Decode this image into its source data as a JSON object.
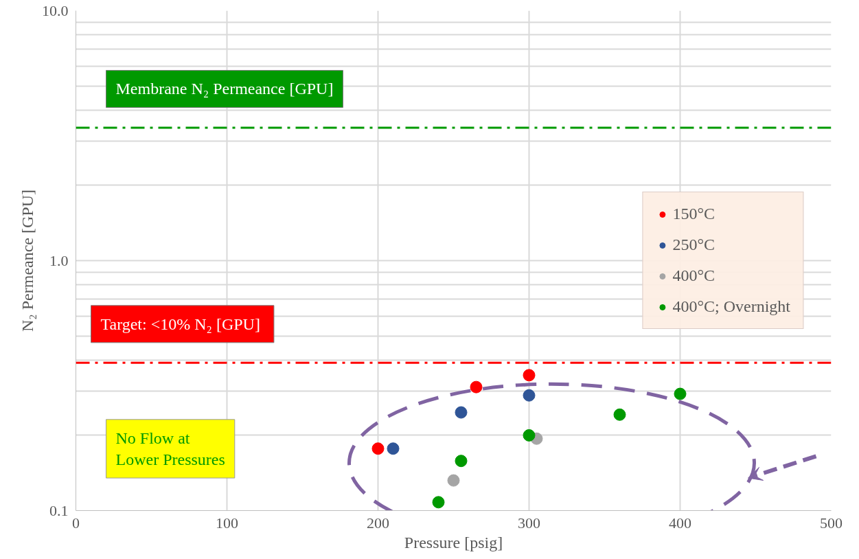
{
  "chart_data": {
    "type": "scatter",
    "xlabel": "Pressure [psig]",
    "ylabel": "N₂ Permeance [GPU]",
    "xlim": [
      0,
      500
    ],
    "xticks": [
      0,
      100,
      200,
      300,
      400,
      500
    ],
    "ylim": [
      0.1,
      10
    ],
    "yticks": [
      0.1,
      {
        "value": 1,
        "label": "1.0"
      },
      {
        "value": 10,
        "label": "10.0"
      }
    ],
    "log": "y",
    "grid": true,
    "legend": "right",
    "marker": "circle",
    "series": [
      {
        "name": "150°C",
        "color": "#ff0000",
        "x": [
          200,
          265,
          300
        ],
        "values": [
          0.177,
          0.312,
          0.348
        ]
      },
      {
        "name": "250°C",
        "color": "#2f5597",
        "x": [
          210,
          255,
          300
        ],
        "values": [
          0.177,
          0.247,
          0.289
        ]
      },
      {
        "name": "400°C",
        "color": "#a5a5a5",
        "x": [
          250,
          305
        ],
        "values": [
          0.132,
          0.194
        ]
      },
      {
        "name": "400°C; Overnight",
        "color": "#009900",
        "x": [
          240,
          255,
          300,
          360,
          400
        ],
        "values": [
          0.108,
          0.158,
          0.2,
          0.242,
          0.293
        ]
      }
    ],
    "ref_lines": [
      {
        "axis": "y",
        "value": 3.4,
        "label": "Membrane N₂ Permeance [GPU]",
        "color": "#009900",
        "line_style": "dashdot"
      },
      {
        "axis": "y",
        "value": 0.39,
        "label": "Target:  <10% N₂ [GPU]",
        "color": "#ff0000",
        "line_style": "dashdot"
      }
    ],
    "annotations": [
      "No Flow at\nLower Pressures"
    ]
  }
}
